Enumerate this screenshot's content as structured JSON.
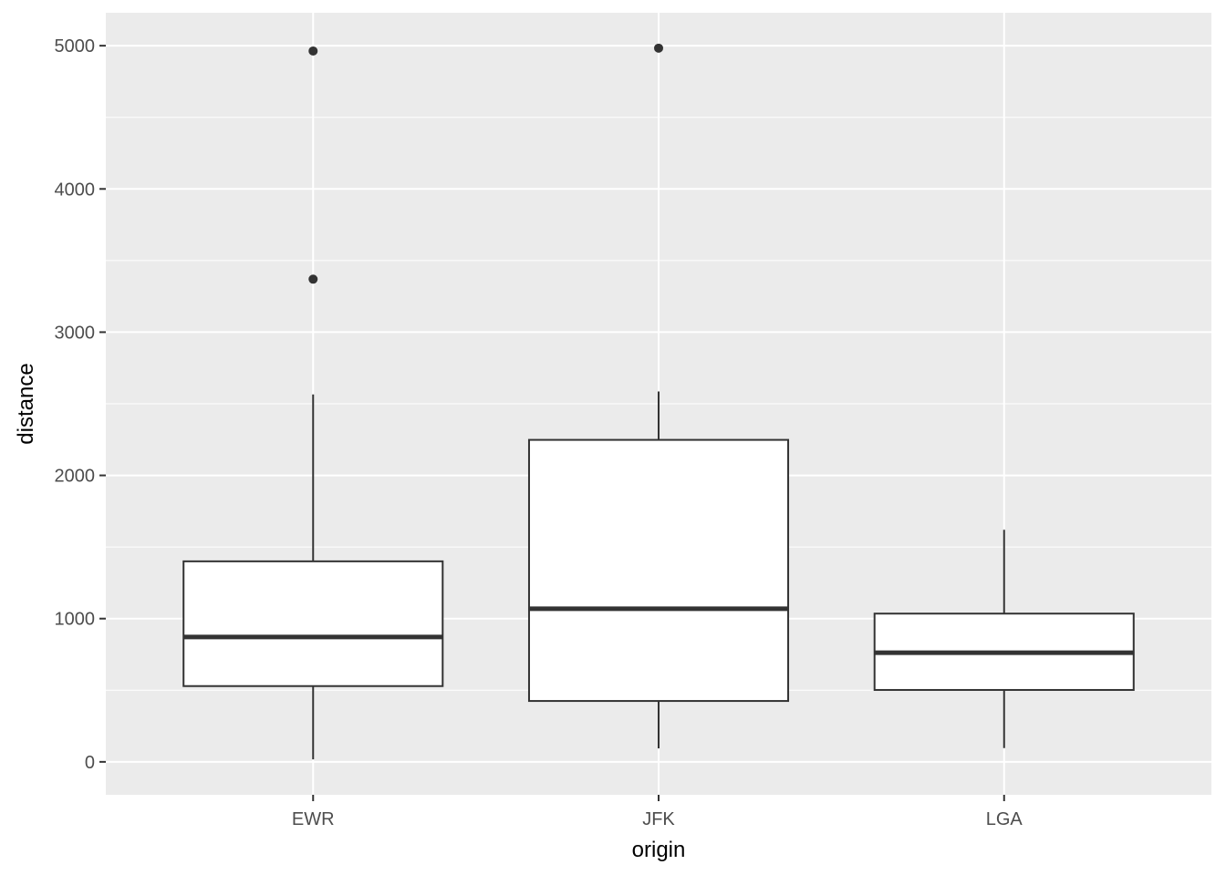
{
  "chart_data": {
    "type": "boxplot",
    "title": "",
    "xlabel": "origin",
    "ylabel": "distance",
    "ylim": [
      -230,
      5230
    ],
    "yticks": [
      0,
      1000,
      2000,
      3000,
      4000,
      5000
    ],
    "grid": true,
    "colors": {
      "panel": "#ebebeb",
      "grid": "#ffffff",
      "box_fill": "#ffffff",
      "box_line": "#333333",
      "outlier": "#333333"
    },
    "categories": [
      "EWR",
      "JFK",
      "LGA"
    ],
    "boxes": [
      {
        "category": "EWR",
        "min": 17,
        "q1": 529,
        "median": 872,
        "q3": 1400,
        "max": 2565,
        "outliers": [
          3370,
          4963
        ]
      },
      {
        "category": "JFK",
        "min": 94,
        "q1": 425,
        "median": 1069,
        "q3": 2248,
        "max": 2586,
        "outliers": [
          4983
        ]
      },
      {
        "category": "LGA",
        "min": 96,
        "q1": 502,
        "median": 762,
        "q3": 1035,
        "max": 1620,
        "outliers": []
      }
    ]
  }
}
